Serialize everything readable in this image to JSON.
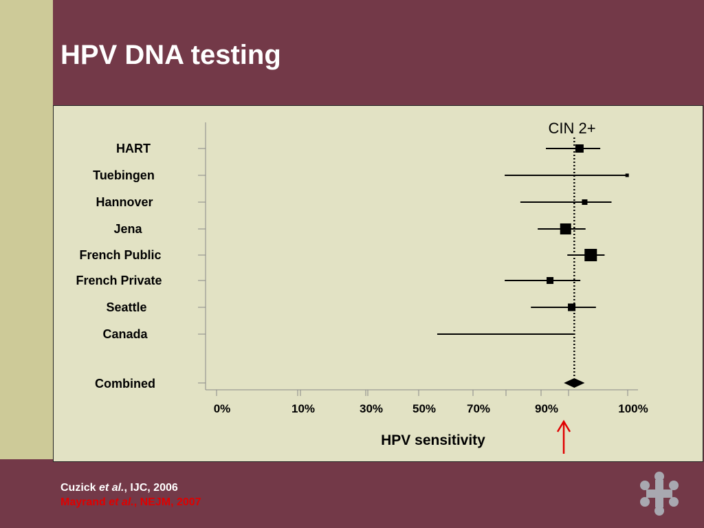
{
  "slide": {
    "title": "HPV DNA testing",
    "references": [
      {
        "author": "Cuzick",
        "etal": "et al.",
        "rest": ", IJC, 2006"
      },
      {
        "author": "Mayrand",
        "etal": "et al.",
        "rest": ", NEJM, 2007"
      }
    ]
  },
  "colors": {
    "header": "#733948",
    "panel": "#e2e2c4",
    "strip": "#cdca98",
    "arrow": "#e00000",
    "reference2": "#e00000"
  },
  "chart_data": {
    "type": "forest",
    "title": "CIN 2+",
    "xlabel": "HPV sensitivity",
    "xticks": [
      "0%",
      "10%",
      "30%",
      "50%",
      "70%",
      "90%",
      "100%"
    ],
    "xlim": [
      0,
      100
    ],
    "reference_line": 93.2,
    "studies": [
      {
        "name": "HART",
        "estimate": 93.8,
        "ci": [
          89.8,
          96.2
        ]
      },
      {
        "name": "Tuebingen",
        "estimate": 99.3,
        "ci": [
          77.7,
          99.3
        ]
      },
      {
        "name": "Hannover",
        "estimate": 94.4,
        "ci": [
          82.3,
          97.5
        ]
      },
      {
        "name": "Jena",
        "estimate": 92.2,
        "ci": [
          87.4,
          94.5
        ]
      },
      {
        "name": "French Public",
        "estimate": 95.1,
        "ci": [
          92.4,
          96.7
        ]
      },
      {
        "name": "French Private",
        "estimate": 90.4,
        "ci": [
          77.7,
          93.9
        ]
      },
      {
        "name": "Seattle",
        "estimate": 92.9,
        "ci": [
          85.4,
          95.7
        ]
      },
      {
        "name": "Canada",
        "estimate": null,
        "ci": [
          54.8,
          93.3
        ]
      }
    ],
    "combined": {
      "name": "Combined",
      "estimate": 93.2,
      "ci": [
        92.0,
        94.4
      ]
    }
  }
}
